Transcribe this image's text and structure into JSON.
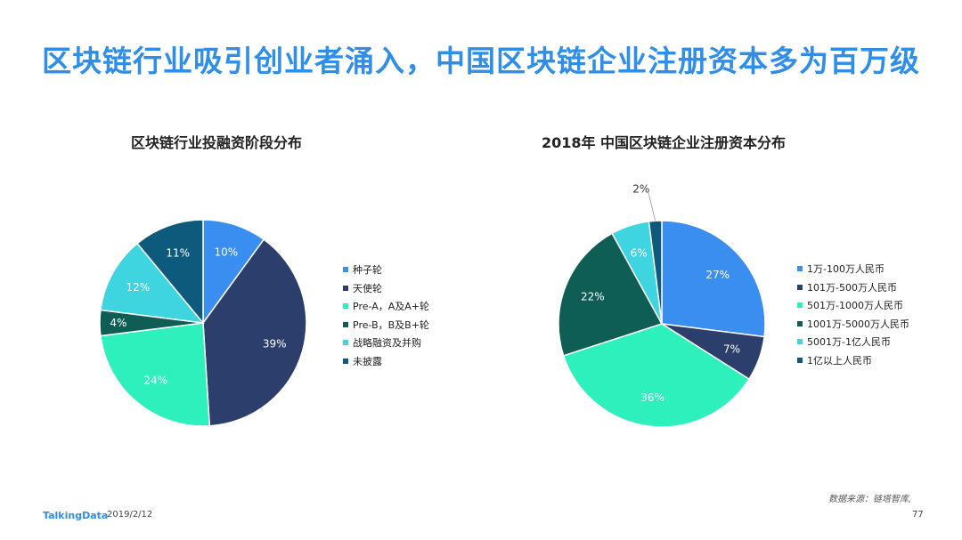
{
  "title": "区块链行业吸引创业者涌入，中国区块链企业注册资本多为百万级",
  "chart_data": [
    {
      "type": "pie",
      "title": "区块链行业投融资阶段分布",
      "categories": [
        "种子轮",
        "天使轮",
        "Pre-A，A及A+轮",
        "Pre-B，B及B+轮",
        "战略融资及并购",
        "未披露"
      ],
      "values": [
        10,
        39,
        24,
        4,
        12,
        11
      ],
      "labels": [
        "10%",
        "39%",
        "24%",
        "4%",
        "12%",
        "11%"
      ],
      "colors": [
        "#3a8ef0",
        "#2c3e6b",
        "#2ef0bd",
        "#0f5e55",
        "#3ed4e0",
        "#0e5a7c"
      ],
      "legend_position": "right"
    },
    {
      "type": "pie",
      "title": "2018年  中国区块链企业注册资本分布",
      "categories": [
        "1万-100万人民币",
        "101万-500万人民币",
        "501万-1000万人民币",
        "1001万-5000万人民币",
        "5001万-1亿人民币",
        "1亿以上人民币"
      ],
      "values": [
        27,
        7,
        36,
        22,
        6,
        2
      ],
      "labels": [
        "27%",
        "7%",
        "36%",
        "22%",
        "6%",
        "2%"
      ],
      "colors": [
        "#3a8ef0",
        "#2c3e6b",
        "#2ef0bd",
        "#0f5e55",
        "#3ed4e0",
        "#0e5a7c"
      ],
      "legend_position": "right"
    }
  ],
  "footer": {
    "brand": "TalkingData",
    "date": "2019/2/12",
    "source": "数据来源：链塔智库,",
    "page": "77"
  }
}
